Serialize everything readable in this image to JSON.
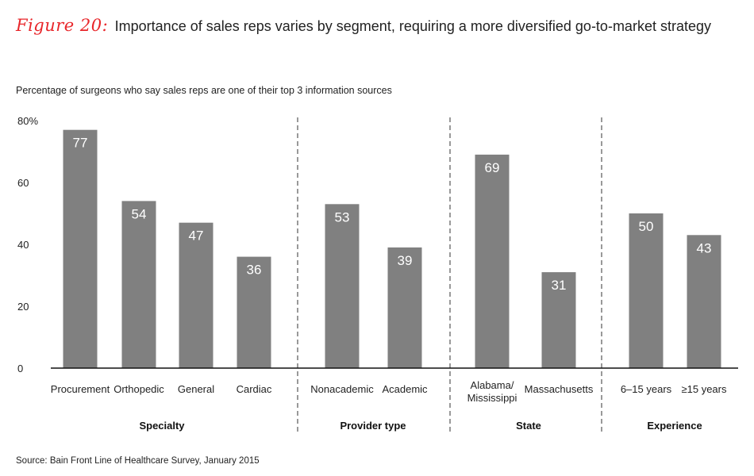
{
  "title": {
    "label": "Figure 20:",
    "text": "Importance of sales reps varies by segment, requiring a more diversified go-to-market strategy"
  },
  "chart_data": {
    "type": "bar",
    "title": "Importance of sales reps varies by segment, requiring a more diversified go-to-market strategy",
    "subtitle": "Percentage of surgeons who say sales reps are one of their top 3 information sources",
    "ylabel": "",
    "xlabel": "",
    "ylim": [
      0,
      80
    ],
    "yticks": [
      "0",
      "20",
      "40",
      "60",
      "80%"
    ],
    "bar_color": "#808080",
    "groups": [
      {
        "name": "Specialty",
        "categories": [
          "Procurement",
          "Orthopedic",
          "General",
          "Cardiac"
        ],
        "values": [
          77,
          54,
          47,
          36
        ]
      },
      {
        "name": "Provider type",
        "categories": [
          "Nonacademic",
          "Academic"
        ],
        "values": [
          53,
          39
        ]
      },
      {
        "name": "State",
        "categories": [
          "Alabama/\nMississippi",
          "Massachusetts"
        ],
        "values": [
          69,
          31
        ]
      },
      {
        "name": "Experience",
        "categories": [
          "6–15 years",
          "≥15 years"
        ],
        "values": [
          50,
          43
        ]
      }
    ]
  },
  "source": "Source: Bain Front Line of Healthcare Survey, January 2015"
}
